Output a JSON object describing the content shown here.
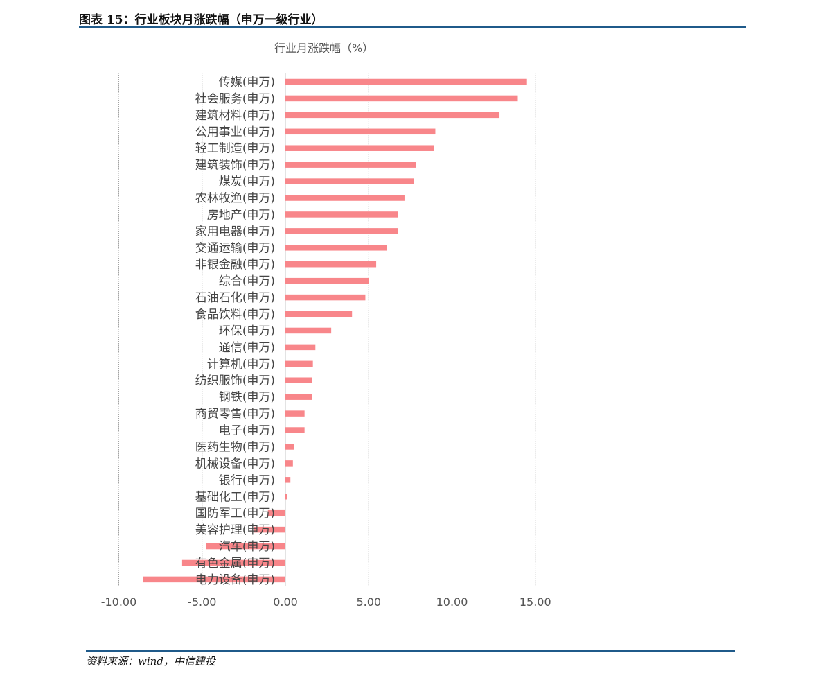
{
  "figure_title": "图表 15：行业板块月涨跌幅（申万一级行业）",
  "source": "资料来源：wind，中信建投",
  "colors": {
    "bar": "#f8868a",
    "grid": "#9a9a9a",
    "rule": "#1f5a8a"
  },
  "chart_data": {
    "type": "bar",
    "orientation": "horizontal",
    "title": "行业月涨跌幅（%）",
    "xlim": [
      -10,
      16.5
    ],
    "xticks": [
      "-10.00",
      "-5.00",
      "0.00",
      "5.00",
      "10.00",
      "15.00"
    ],
    "grid": true,
    "categories": [
      "传媒(申万)",
      "社会服务(申万)",
      "建筑材料(申万)",
      "公用事业(申万)",
      "轻工制造(申万)",
      "建筑装饰(申万)",
      "煤炭(申万)",
      "农林牧渔(申万)",
      "房地产(申万)",
      "家用电器(申万)",
      "交通运输(申万)",
      "非银金融(申万)",
      "综合(申万)",
      "石油石化(申万)",
      "食品饮料(申万)",
      "环保(申万)",
      "通信(申万)",
      "计算机(申万)",
      "纺织服饰(申万)",
      "钢铁(申万)",
      "商贸零售(申万)",
      "电子(申万)",
      "医药生物(申万)",
      "机械设备(申万)",
      "银行(申万)",
      "基础化工(申万)",
      "国防军工(申万)",
      "美容护理(申万)",
      "汽车(申万)",
      "有色金属(申万)",
      "电力设备(申万)"
    ],
    "values": [
      14.5,
      13.95,
      12.85,
      9.0,
      8.9,
      7.85,
      7.7,
      7.15,
      6.75,
      6.75,
      6.1,
      5.45,
      5.0,
      4.8,
      4.0,
      2.75,
      1.8,
      1.65,
      1.6,
      1.6,
      1.15,
      1.15,
      0.5,
      0.45,
      0.3,
      0.1,
      -1.05,
      -1.9,
      -4.75,
      -6.2,
      -8.55
    ]
  }
}
